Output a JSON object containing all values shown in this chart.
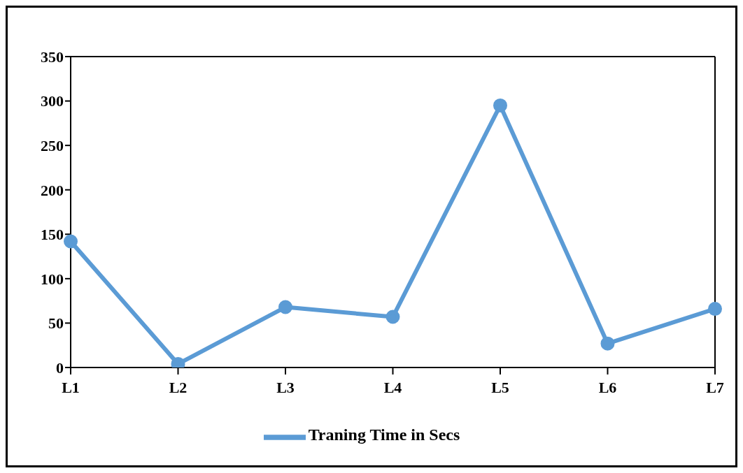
{
  "chart_data": {
    "type": "line",
    "categories": [
      "L1",
      "L2",
      "L3",
      "L4",
      "L5",
      "L6",
      "L7"
    ],
    "series": [
      {
        "name": "Traning Time in Secs",
        "color": "#5b9bd5",
        "values": [
          142,
          4,
          68,
          57,
          295,
          27,
          66
        ]
      }
    ],
    "ylim": [
      0,
      350
    ],
    "yticks": [
      0,
      50,
      100,
      150,
      200,
      250,
      300,
      350
    ],
    "grid": false,
    "legend": "bottom",
    "marker": "circle",
    "line_style": "solid"
  }
}
